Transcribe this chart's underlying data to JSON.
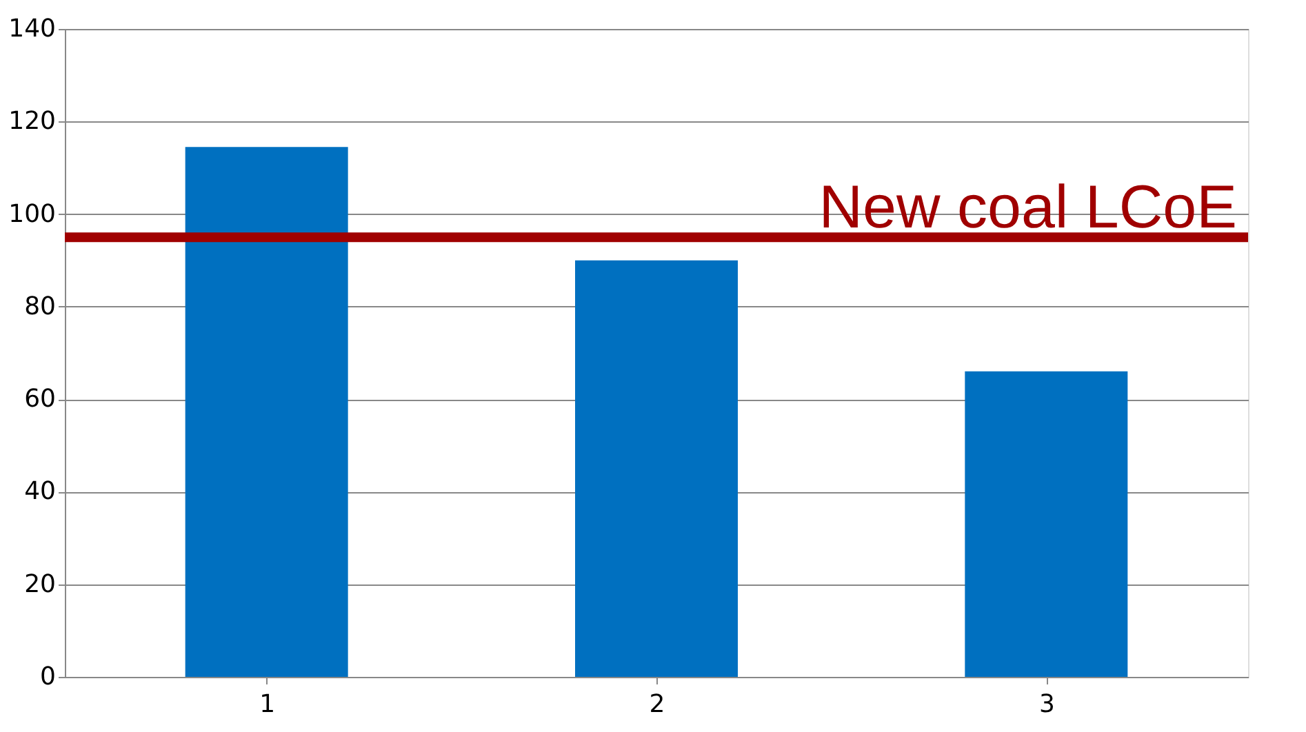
{
  "chart_data": {
    "type": "bar",
    "categories": [
      "1",
      "2",
      "3"
    ],
    "values": [
      114.5,
      90,
      66
    ],
    "color": "#0070c0",
    "ylim": [
      0,
      140
    ],
    "yticks": [
      0,
      20,
      40,
      60,
      80,
      100,
      120,
      140
    ],
    "grid": "y",
    "ref_lines": [
      {
        "axis": "y",
        "value": 95,
        "label": "New coal LCoE",
        "color": "#a00000"
      }
    ]
  }
}
